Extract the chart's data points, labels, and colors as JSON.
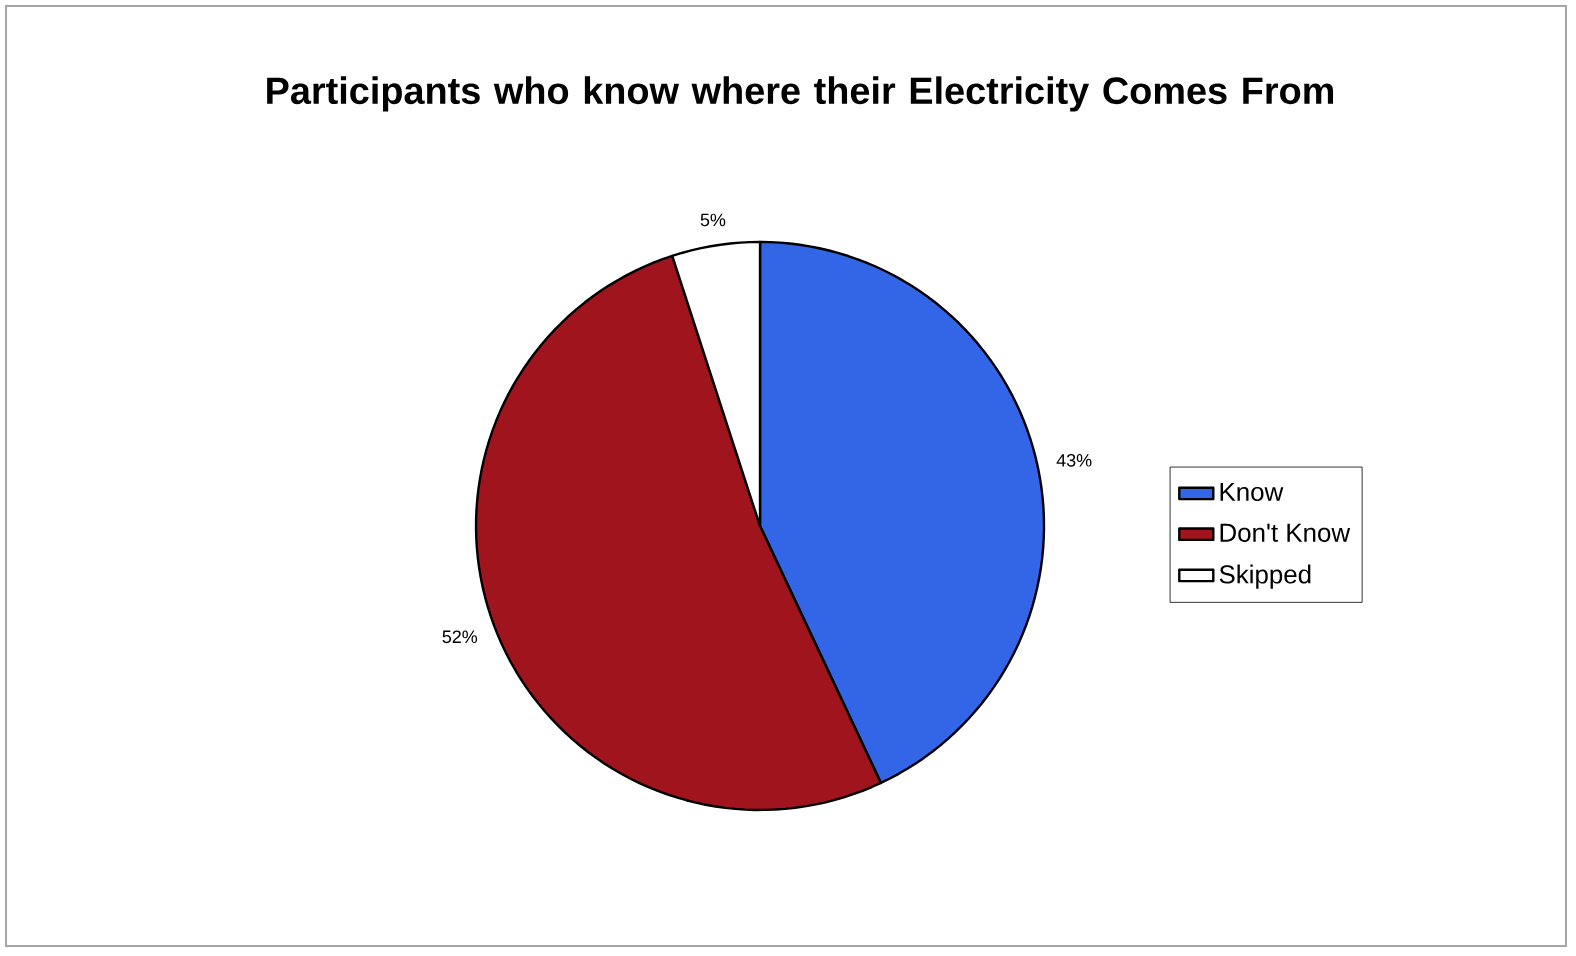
{
  "chart_data": {
    "type": "pie",
    "title": "Participants who know where their Electricity Comes From",
    "categories": [
      "Know",
      "Don't Know",
      "Skipped"
    ],
    "values": [
      43,
      52,
      5
    ],
    "value_labels": [
      "43%",
      "52%",
      "5%"
    ],
    "colors": [
      "#3366e6",
      "#a0141e",
      "#ffffff"
    ],
    "legend": "right"
  }
}
